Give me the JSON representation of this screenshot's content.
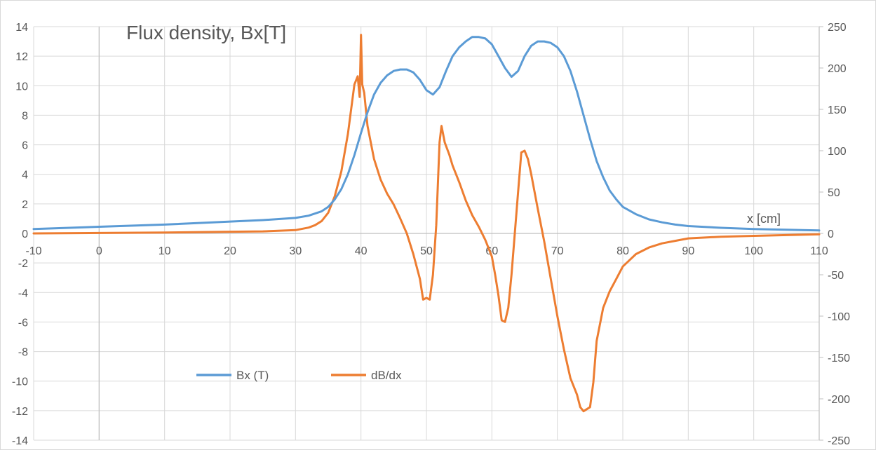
{
  "chart_data": {
    "type": "line",
    "title": "Flux density, Bx[T]",
    "xlabel": "x [cm]",
    "ylabel": "",
    "y2label": "",
    "xlim": [
      -10,
      110
    ],
    "ylim": [
      -14,
      14
    ],
    "y2lim": [
      -250,
      250
    ],
    "x_ticks": [
      -10,
      0,
      10,
      20,
      30,
      40,
      50,
      60,
      70,
      80,
      90,
      100,
      110
    ],
    "y_ticks": [
      14,
      12,
      10,
      8,
      6,
      4,
      2,
      0,
      -2,
      -4,
      -6,
      -8,
      -10,
      -12,
      -14
    ],
    "y2_ticks": [
      250,
      200,
      150,
      100,
      50,
      0,
      -50,
      -100,
      -150,
      -200,
      -250
    ],
    "grid": true,
    "legend_placement": "bottom-left",
    "series": [
      {
        "name": "Bx (T)",
        "axis": "left",
        "color": "#5b9bd5",
        "x": [
          -10,
          0,
          10,
          20,
          25,
          30,
          32,
          34,
          35,
          36,
          37,
          38,
          39,
          40,
          41,
          42,
          43,
          44,
          45,
          46,
          47,
          48,
          49,
          50,
          51,
          52,
          53,
          54,
          55,
          56,
          57,
          58,
          59,
          60,
          61,
          62,
          63,
          64,
          65,
          66,
          67,
          68,
          69,
          70,
          71,
          72,
          73,
          74,
          75,
          76,
          77,
          78,
          79,
          80,
          82,
          84,
          86,
          88,
          90,
          95,
          100,
          105,
          110
        ],
        "y": [
          0.3,
          0.45,
          0.6,
          0.8,
          0.9,
          1.05,
          1.2,
          1.5,
          1.8,
          2.3,
          3.0,
          4.0,
          5.3,
          6.8,
          8.2,
          9.4,
          10.2,
          10.7,
          11.0,
          11.1,
          11.1,
          10.9,
          10.4,
          9.7,
          9.4,
          9.9,
          11.0,
          12.0,
          12.6,
          13.0,
          13.3,
          13.3,
          13.2,
          12.8,
          12.0,
          11.2,
          10.6,
          11.0,
          12.0,
          12.7,
          13.0,
          13.0,
          12.9,
          12.6,
          12.0,
          11.0,
          9.6,
          8.0,
          6.4,
          4.9,
          3.8,
          2.9,
          2.3,
          1.8,
          1.3,
          0.95,
          0.75,
          0.6,
          0.5,
          0.38,
          0.3,
          0.25,
          0.2
        ]
      },
      {
        "name": "dB/dx",
        "axis": "right",
        "color": "#ed7d31",
        "x": [
          -10,
          0,
          10,
          20,
          25,
          30,
          32,
          33,
          34,
          35,
          36,
          37,
          38,
          39,
          39.5,
          39.8,
          40,
          40.2,
          40.5,
          41,
          42,
          43,
          44,
          45,
          46,
          47,
          48,
          49,
          49.5,
          50,
          50.5,
          51,
          51.5,
          52,
          52.3,
          52.8,
          53.5,
          54,
          55,
          56,
          57,
          58,
          59,
          60,
          60.5,
          61,
          61.5,
          62,
          62.5,
          63,
          63.5,
          64,
          64.5,
          65,
          65.5,
          66,
          67,
          68,
          69,
          70,
          71,
          72,
          73,
          73.5,
          74,
          75,
          75.5,
          76,
          77,
          78,
          79,
          80,
          82,
          84,
          86,
          88,
          90,
          95,
          100,
          105,
          110
        ],
        "y": [
          0,
          0.5,
          1,
          2,
          2.5,
          4,
          7,
          10,
          15,
          25,
          45,
          75,
          120,
          180,
          190,
          165,
          240,
          180,
          170,
          130,
          90,
          65,
          48,
          35,
          18,
          0,
          -25,
          -55,
          -80,
          -78,
          -80,
          -50,
          10,
          110,
          130,
          110,
          95,
          82,
          62,
          40,
          22,
          8,
          -8,
          -28,
          -50,
          -75,
          -105,
          -107,
          -90,
          -50,
          0,
          50,
          98,
          100,
          90,
          72,
          30,
          -10,
          -55,
          -100,
          -140,
          -175,
          -195,
          -210,
          -215,
          -210,
          -180,
          -130,
          -90,
          -70,
          -55,
          -40,
          -25,
          -17,
          -12,
          -9,
          -6,
          -4,
          -3,
          -2,
          -1
        ]
      }
    ]
  }
}
